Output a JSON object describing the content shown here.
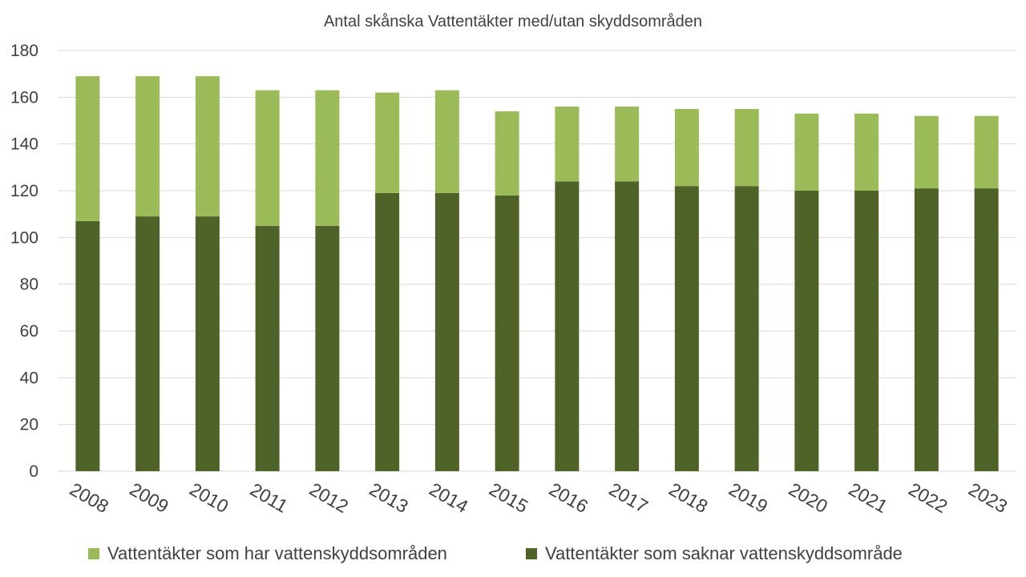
{
  "chart_data": {
    "type": "bar",
    "stacked": true,
    "title": "Antal skånska Vattentäkter med/utan skyddsområden",
    "xlabel": "",
    "ylabel": "",
    "ylim": [
      0,
      180
    ],
    "yticks": [
      0,
      20,
      40,
      60,
      80,
      100,
      120,
      140,
      160,
      180
    ],
    "grid": true,
    "legend_position": "bottom",
    "categories": [
      "2008",
      "2009",
      "2010",
      "2011",
      "2012",
      "2013",
      "2014",
      "2015",
      "2016",
      "2017",
      "2018",
      "2019",
      "2020",
      "2021",
      "2022",
      "2023"
    ],
    "series": [
      {
        "name": "Vattentäkter som saknar vattenskyddsområde",
        "color": "#4f6228",
        "values": [
          107,
          109,
          109,
          105,
          105,
          119,
          119,
          118,
          124,
          124,
          122,
          122,
          120,
          120,
          121,
          121
        ]
      },
      {
        "name": "Vattentäkter som har vattenskyddsområden",
        "color": "#9bbb59",
        "values": [
          62,
          60,
          60,
          58,
          58,
          43,
          44,
          36,
          32,
          32,
          33,
          33,
          33,
          33,
          31,
          31
        ]
      }
    ],
    "legend_order": [
      1,
      0
    ]
  }
}
